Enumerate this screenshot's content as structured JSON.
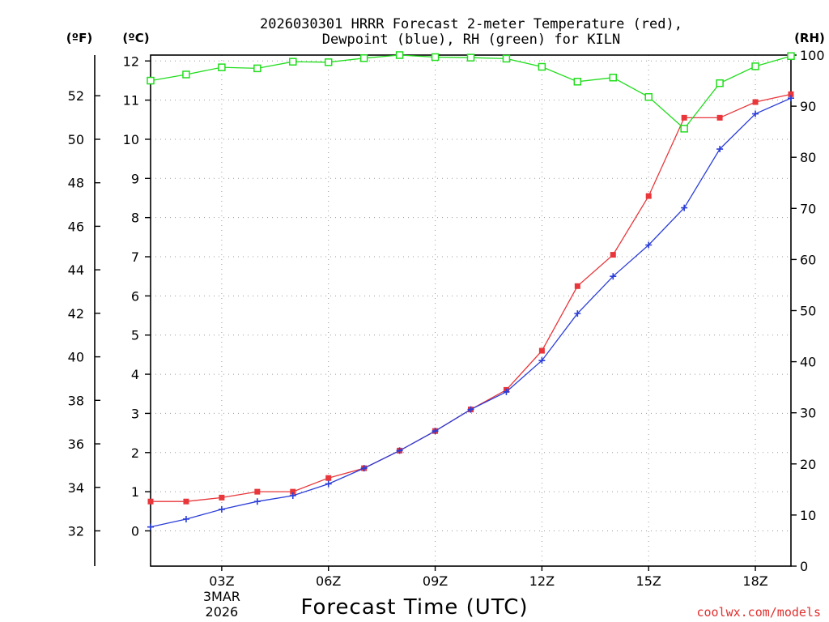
{
  "chart_data": {
    "type": "line",
    "title_line1": "2026030301 HRRR Forecast 2-meter Temperature (red),",
    "title_line2": "Dewpoint (blue), RH (green) for KILN",
    "unit_f": "(ºF)",
    "unit_c": "(ºC)",
    "unit_rh": "(RH)",
    "xlabel": "Forecast Time (UTC)",
    "credit": "coolwx.com/models",
    "x_ticks": [
      {
        "hour": 3,
        "label": "03Z",
        "sub1": "3MAR",
        "sub2": "2026"
      },
      {
        "hour": 6,
        "label": "06Z"
      },
      {
        "hour": 9,
        "label": "09Z"
      },
      {
        "hour": 12,
        "label": "12Z"
      },
      {
        "hour": 15,
        "label": "15Z"
      },
      {
        "hour": 18,
        "label": "18Z"
      }
    ],
    "x_range_hours": [
      1,
      19
    ],
    "celsius_axis": {
      "range": [
        -0.9,
        12.15
      ],
      "ticks": [
        "0",
        "1",
        "2",
        "3",
        "4",
        "5",
        "6",
        "7",
        "8",
        "9",
        "10",
        "11",
        "12"
      ]
    },
    "fahrenheit_axis": {
      "ticks": [
        "32",
        "34",
        "36",
        "38",
        "40",
        "42",
        "44",
        "46",
        "48",
        "50",
        "52"
      ]
    },
    "rh_axis": {
      "range": [
        0,
        100
      ],
      "ticks": [
        "0",
        "10",
        "20",
        "30",
        "40",
        "50",
        "60",
        "70",
        "80",
        "90",
        "100"
      ]
    },
    "hours": [
      1,
      2,
      3,
      4,
      5,
      6,
      7,
      8,
      9,
      10,
      11,
      12,
      13,
      14,
      15,
      16,
      17,
      18,
      19
    ],
    "series": [
      {
        "name": "Temperature",
        "unit": "C",
        "color": "#e8363a",
        "marker": "filled-square",
        "values": [
          0.75,
          0.75,
          0.85,
          1.0,
          1.0,
          1.35,
          1.6,
          2.05,
          2.55,
          3.1,
          3.6,
          4.6,
          6.25,
          7.05,
          8.55,
          10.55,
          10.55,
          10.95,
          11.15
        ]
      },
      {
        "name": "Dewpoint",
        "unit": "C",
        "color": "#2b3ed8",
        "marker": "plus",
        "values": [
          0.1,
          0.3,
          0.55,
          0.75,
          0.9,
          1.2,
          1.6,
          2.05,
          2.55,
          3.1,
          3.55,
          4.35,
          5.55,
          6.5,
          7.3,
          8.25,
          9.75,
          10.65,
          11.05
        ]
      },
      {
        "name": "RH",
        "unit": "%",
        "color": "#22dd1e",
        "marker": "open-square",
        "values": [
          95.0,
          96.2,
          97.6,
          97.4,
          98.7,
          98.6,
          99.4,
          100.0,
          99.6,
          99.5,
          99.3,
          97.7,
          94.8,
          95.6,
          91.8,
          85.6,
          94.5,
          97.8,
          99.8
        ]
      }
    ]
  }
}
